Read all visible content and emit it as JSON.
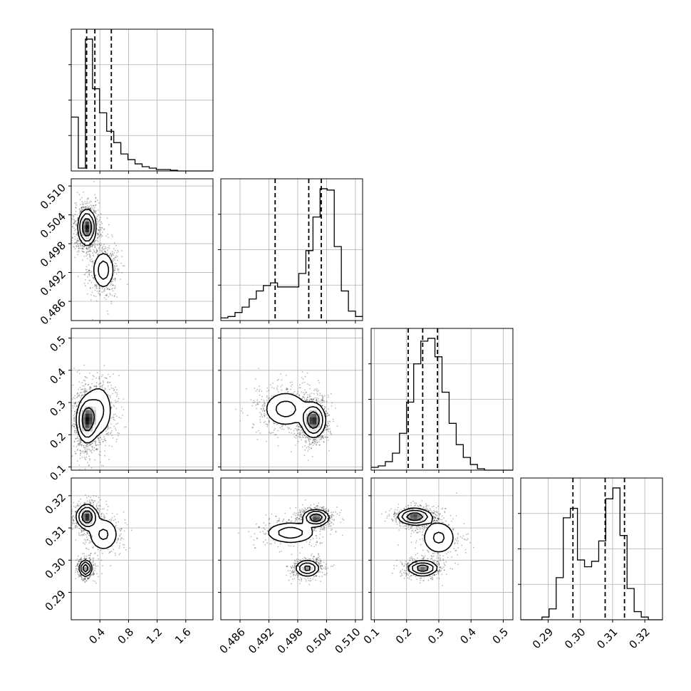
{
  "chart_data": {
    "type": "corner",
    "title": "",
    "parameters": [
      {
        "label": "",
        "range": [
          0.0,
          1.98
        ],
        "ticks": [
          "0.4",
          "0.8",
          "1.2",
          "1.6"
        ],
        "tick_values": [
          0.4,
          0.8,
          1.2,
          1.6
        ],
        "quantiles": [
          0.215,
          0.33,
          0.56
        ]
      },
      {
        "label": "",
        "range": [
          0.482,
          0.5115
        ],
        "ticks": [
          "0.486",
          "0.492",
          "0.498",
          "0.504",
          "0.510"
        ],
        "tick_values": [
          0.486,
          0.492,
          0.498,
          0.504,
          0.51
        ],
        "quantiles": [
          0.4933,
          0.5003,
          0.5029
        ]
      },
      {
        "label": "",
        "range": [
          0.09,
          0.53
        ],
        "ticks": [
          "0.1",
          "0.2",
          "0.3",
          "0.4",
          "0.5"
        ],
        "tick_values": [
          0.1,
          0.2,
          0.3,
          0.4,
          0.5
        ],
        "quantiles": [
          0.205,
          0.25,
          0.296
        ]
      },
      {
        "label": "",
        "range": [
          0.2815,
          0.3255
        ],
        "ticks": [
          "0.29",
          "0.30",
          "0.31",
          "0.32"
        ],
        "tick_values": [
          0.29,
          0.3,
          0.31,
          0.32
        ],
        "quantiles": [
          0.2977,
          0.3077,
          0.3137
        ]
      }
    ],
    "histograms": [
      {
        "bin_start": 0.0,
        "bin_width": 0.099,
        "counts": [
          0.38,
          0.02,
          0.93,
          0.58,
          0.41,
          0.28,
          0.2,
          0.12,
          0.08,
          0.05,
          0.03,
          0.02,
          0.01,
          0.01,
          0.005,
          0.0,
          0.0,
          0.0,
          0.0,
          0.0
        ]
      },
      {
        "bin_start": 0.482,
        "bin_width": 0.001475,
        "counts": [
          0.02,
          0.03,
          0.06,
          0.1,
          0.16,
          0.22,
          0.26,
          0.28,
          0.25,
          0.25,
          0.25,
          0.35,
          0.52,
          0.77,
          0.98,
          0.97,
          0.55,
          0.22,
          0.07,
          0.03
        ]
      },
      {
        "bin_start": 0.09,
        "bin_width": 0.022,
        "counts": [
          0.02,
          0.03,
          0.06,
          0.12,
          0.26,
          0.48,
          0.75,
          0.91,
          0.93,
          0.8,
          0.55,
          0.33,
          0.18,
          0.09,
          0.04,
          0.01,
          0.0,
          0.0,
          0.0,
          0.0
        ]
      },
      {
        "bin_start": 0.2815,
        "bin_width": 0.0022,
        "counts": [
          0.0,
          0.0,
          0.0,
          0.02,
          0.08,
          0.31,
          0.75,
          0.82,
          0.44,
          0.39,
          0.43,
          0.58,
          0.89,
          0.97,
          0.62,
          0.23,
          0.06,
          0.02,
          0.0,
          0.0
        ]
      }
    ],
    "pair_modes": [
      {
        "row": 1,
        "col": 0,
        "modes": [
          {
            "x": 0.22,
            "y": 0.5014,
            "sx": 0.06,
            "sy": 0.0018,
            "w": 1.0
          },
          {
            "x": 0.45,
            "y": 0.4925,
            "sx": 0.08,
            "sy": 0.0021,
            "w": 0.42
          }
        ]
      },
      {
        "row": 2,
        "col": 0,
        "modes": [
          {
            "x": 0.22,
            "y": 0.245,
            "sx": 0.07,
            "sy": 0.034,
            "w": 1.0
          },
          {
            "x": 0.38,
            "y": 0.275,
            "sx": 0.11,
            "sy": 0.045,
            "w": 0.4
          }
        ]
      },
      {
        "row": 2,
        "col": 1,
        "modes": [
          {
            "x": 0.5013,
            "y": 0.245,
            "sx": 0.0012,
            "sy": 0.026,
            "w": 1.0
          },
          {
            "x": 0.4955,
            "y": 0.28,
            "sx": 0.0025,
            "sy": 0.03,
            "w": 0.42
          }
        ]
      },
      {
        "row": 3,
        "col": 0,
        "modes": [
          {
            "x": 0.22,
            "y": 0.3135,
            "sx": 0.07,
            "sy": 0.0018,
            "w": 0.9
          },
          {
            "x": 0.2,
            "y": 0.2975,
            "sx": 0.04,
            "sy": 0.0012,
            "w": 0.85
          },
          {
            "x": 0.45,
            "y": 0.308,
            "sx": 0.12,
            "sy": 0.003,
            "w": 0.3
          }
        ]
      },
      {
        "row": 3,
        "col": 1,
        "modes": [
          {
            "x": 0.5018,
            "y": 0.3132,
            "sx": 0.0013,
            "sy": 0.0012,
            "w": 1.0
          },
          {
            "x": 0.4965,
            "y": 0.3085,
            "sx": 0.0028,
            "sy": 0.0018,
            "w": 0.45
          },
          {
            "x": 0.5,
            "y": 0.2975,
            "sx": 0.0012,
            "sy": 0.0012,
            "w": 0.75
          }
        ]
      },
      {
        "row": 3,
        "col": 2,
        "modes": [
          {
            "x": 0.225,
            "y": 0.3135,
            "sx": 0.025,
            "sy": 0.0012,
            "w": 1.0
          },
          {
            "x": 0.25,
            "y": 0.2975,
            "sx": 0.022,
            "sy": 0.0011,
            "w": 0.9
          },
          {
            "x": 0.3,
            "y": 0.307,
            "sx": 0.03,
            "sy": 0.003,
            "w": 0.35
          }
        ]
      }
    ],
    "grid": true,
    "colors": {
      "contour": "#000000",
      "histogram": "#000000",
      "points": "#000000",
      "grid": "#b0b0b0",
      "axes": "#000000"
    }
  }
}
